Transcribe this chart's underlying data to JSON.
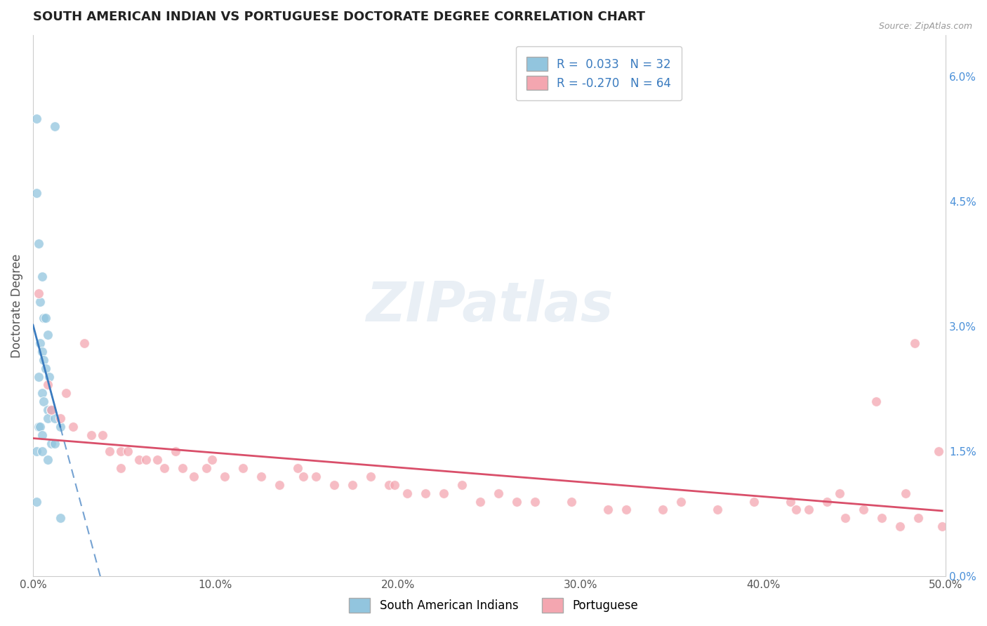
{
  "title": "SOUTH AMERICAN INDIAN VS PORTUGUESE DOCTORATE DEGREE CORRELATION CHART",
  "source": "Source: ZipAtlas.com",
  "ylabel": "Doctorate Degree",
  "xlim": [
    0.0,
    0.5
  ],
  "ylim": [
    0.0,
    0.065
  ],
  "xtick_labels": [
    "0.0%",
    "10.0%",
    "20.0%",
    "30.0%",
    "40.0%",
    "50.0%"
  ],
  "xtick_values": [
    0.0,
    0.1,
    0.2,
    0.3,
    0.4,
    0.5
  ],
  "ytick_labels_right": [
    "0.0%",
    "1.5%",
    "3.0%",
    "4.5%",
    "6.0%"
  ],
  "ytick_values_right": [
    0.0,
    0.015,
    0.03,
    0.045,
    0.06
  ],
  "blue_color": "#92c5de",
  "pink_color": "#f4a6b0",
  "blue_line_color": "#3a7bbf",
  "pink_line_color": "#d94f6a",
  "grid_color": "#cccccc",
  "background_color": "#ffffff",
  "title_color": "#222222",
  "watermark": "ZIPatlas",
  "blue_scatter_x": [
    0.002,
    0.012,
    0.002,
    0.003,
    0.005,
    0.004,
    0.006,
    0.007,
    0.008,
    0.004,
    0.005,
    0.006,
    0.007,
    0.009,
    0.003,
    0.005,
    0.006,
    0.008,
    0.01,
    0.008,
    0.012,
    0.003,
    0.004,
    0.015,
    0.005,
    0.01,
    0.012,
    0.002,
    0.005,
    0.008,
    0.002,
    0.015
  ],
  "blue_scatter_y": [
    0.055,
    0.054,
    0.046,
    0.04,
    0.036,
    0.033,
    0.031,
    0.031,
    0.029,
    0.028,
    0.027,
    0.026,
    0.025,
    0.024,
    0.024,
    0.022,
    0.021,
    0.02,
    0.02,
    0.019,
    0.019,
    0.018,
    0.018,
    0.018,
    0.017,
    0.016,
    0.016,
    0.015,
    0.015,
    0.014,
    0.009,
    0.007
  ],
  "pink_scatter_x": [
    0.003,
    0.008,
    0.01,
    0.015,
    0.018,
    0.022,
    0.028,
    0.032,
    0.038,
    0.042,
    0.048,
    0.052,
    0.058,
    0.062,
    0.068,
    0.072,
    0.078,
    0.082,
    0.088,
    0.095,
    0.105,
    0.115,
    0.125,
    0.135,
    0.145,
    0.155,
    0.165,
    0.175,
    0.185,
    0.195,
    0.205,
    0.215,
    0.225,
    0.235,
    0.245,
    0.255,
    0.265,
    0.275,
    0.295,
    0.315,
    0.325,
    0.345,
    0.355,
    0.375,
    0.395,
    0.415,
    0.425,
    0.435,
    0.445,
    0.455,
    0.465,
    0.475,
    0.485,
    0.483,
    0.462,
    0.478,
    0.498,
    0.496,
    0.442,
    0.418,
    0.198,
    0.148,
    0.098,
    0.048
  ],
  "pink_scatter_y": [
    0.034,
    0.023,
    0.02,
    0.019,
    0.022,
    0.018,
    0.028,
    0.017,
    0.017,
    0.015,
    0.015,
    0.015,
    0.014,
    0.014,
    0.014,
    0.013,
    0.015,
    0.013,
    0.012,
    0.013,
    0.012,
    0.013,
    0.012,
    0.011,
    0.013,
    0.012,
    0.011,
    0.011,
    0.012,
    0.011,
    0.01,
    0.01,
    0.01,
    0.011,
    0.009,
    0.01,
    0.009,
    0.009,
    0.009,
    0.008,
    0.008,
    0.008,
    0.009,
    0.008,
    0.009,
    0.009,
    0.008,
    0.009,
    0.007,
    0.008,
    0.007,
    0.006,
    0.007,
    0.028,
    0.021,
    0.01,
    0.006,
    0.015,
    0.01,
    0.008,
    0.011,
    0.012,
    0.014,
    0.013
  ]
}
